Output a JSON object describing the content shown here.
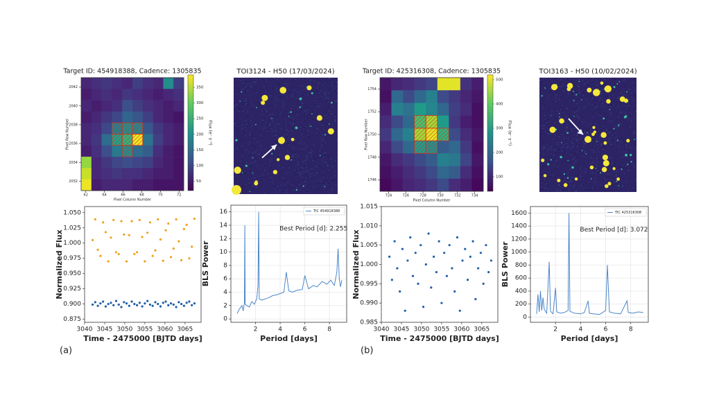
{
  "panel_labels": [
    "(a)",
    "(b)"
  ],
  "chart_data": [
    {
      "type": "heatmap",
      "title": "Target ID: 454918388, Cadence: 1305835",
      "xlabel": "Pixel Column Number",
      "ylabel": "Pixel Row Number",
      "xlim": [
        61.5,
        72.5
      ],
      "xticks": [
        62,
        64,
        66,
        68,
        70,
        72
      ],
      "ylim": [
        2031,
        2043
      ],
      "yticks": [
        2032,
        2034,
        2036,
        2038,
        2040,
        2042
      ],
      "z": [
        [
          60,
          70,
          80,
          70,
          60,
          90,
          70,
          60,
          200,
          90
        ],
        [
          50,
          60,
          70,
          60,
          80,
          70,
          60,
          50,
          60,
          70
        ],
        [
          60,
          50,
          60,
          70,
          110,
          90,
          70,
          60,
          50,
          60
        ],
        [
          50,
          60,
          80,
          100,
          140,
          120,
          90,
          60,
          50,
          40
        ],
        [
          60,
          70,
          100,
          180,
          200,
          190,
          120,
          80,
          60,
          50
        ],
        [
          60,
          80,
          150,
          230,
          260,
          380,
          160,
          90,
          60,
          50
        ],
        [
          50,
          70,
          110,
          170,
          200,
          150,
          130,
          70,
          50,
          40
        ],
        [
          330,
          60,
          80,
          100,
          110,
          100,
          90,
          60,
          50,
          40
        ],
        [
          360,
          60,
          70,
          80,
          70,
          70,
          60,
          50,
          50,
          40
        ],
        [
          380,
          50,
          60,
          60,
          60,
          50,
          50,
          40,
          40,
          40
        ]
      ],
      "zlim": [
        20,
        390
      ],
      "colorbar_label": "Flux (e⁻ s⁻¹)",
      "colorbar_ticks": [
        50,
        100,
        150,
        200,
        250,
        300,
        350
      ]
    },
    {
      "type": "image",
      "title": "TOI3124 - H50 (17/03/2024)"
    },
    {
      "type": "scatter",
      "xlabel": "Time - 2475000 [BJTD days]",
      "ylabel": "Normalized Flux",
      "xlim": [
        3040,
        3069
      ],
      "xticks": [
        3040,
        3045,
        3050,
        3055,
        3060,
        3065
      ],
      "ylim": [
        0.87,
        1.06
      ],
      "yticks": [
        0.875,
        {
          "value": 0.9,
          "label": "0.900"
        },
        0.925,
        {
          "value": 0.95,
          "label": "0.950"
        },
        0.975,
        {
          "value": 1.0,
          "label": "1.000"
        },
        1.025,
        {
          "value": 1.05,
          "label": "1.050"
        }
      ],
      "grid": false,
      "x": [
        3042.0,
        3042.65,
        3043.3,
        3043.95,
        3044.6,
        3045.25,
        3045.9,
        3046.55,
        3047.2,
        3047.85,
        3048.5,
        3049.15,
        3049.8,
        3050.45,
        3051.1,
        3051.75,
        3052.4,
        3053.05,
        3053.7,
        3054.35,
        3055.0,
        3055.65,
        3056.3,
        3056.95,
        3057.6,
        3058.25,
        3058.9,
        3059.55,
        3060.2,
        3060.85,
        3061.5,
        3062.15,
        3062.8,
        3063.45,
        3064.1,
        3064.75,
        3065.4,
        3066.05,
        3066.7,
        3067.35
      ],
      "series": [
        {
          "color": "#f0a020",
          "values": [
            1.005,
            1.039,
            0.989,
            0.979,
            1.034,
            1.018,
            0.97,
            1.009,
            1.038,
            0.985,
            0.982,
            1.036,
            1.014,
            0.97,
            1.013,
            1.036,
            0.982,
            0.985,
            1.038,
            1.01,
            0.97,
            1.017,
            1.034,
            0.979,
            0.988,
            1.039,
            1.006,
            0.971,
            1.021,
            1.032,
            0.977,
            0.991,
            1.039,
            1.003,
            0.972,
            1.023,
            1.03,
            0.975,
            0.994,
            1.04
          ]
        },
        {
          "color": "#1f5fa8",
          "values": [
            0.899,
            0.903,
            0.897,
            0.901,
            0.904,
            0.896,
            0.9,
            0.902,
            0.898,
            0.905,
            0.899,
            0.895,
            0.903,
            0.901,
            0.897,
            0.904,
            0.9,
            0.898,
            0.902,
            0.896,
            0.901,
            0.905,
            0.899,
            0.897,
            0.903,
            0.9,
            0.896,
            0.902,
            0.904,
            0.898,
            0.901,
            0.899,
            0.895,
            0.903,
            0.9,
            0.897,
            0.902,
            0.904,
            0.898,
            0.901
          ]
        }
      ]
    },
    {
      "type": "line",
      "xlabel": "Period [days]",
      "ylabel": "BLS Power",
      "annotation": "Best Period [d]: 2.255",
      "xlim": [
        0,
        9.4
      ],
      "xticks": [
        2,
        4,
        6,
        8
      ],
      "ylim": [
        -0.5,
        17
      ],
      "yticks": [
        0,
        2,
        4,
        6,
        8,
        10,
        12,
        14,
        16
      ],
      "grid": true,
      "legend": "upper right",
      "x": [
        0.5,
        0.7,
        0.9,
        1.0,
        1.1,
        1.13,
        1.16,
        1.3,
        1.5,
        1.7,
        1.9,
        2.1,
        2.2,
        2.255,
        2.3,
        2.5,
        2.8,
        3.1,
        3.4,
        3.7,
        4.0,
        4.3,
        4.5,
        4.7,
        5.0,
        5.4,
        5.8,
        6.0,
        6.3,
        6.7,
        7.0,
        7.4,
        7.8,
        8.1,
        8.4,
        8.6,
        8.7,
        8.8,
        8.9,
        9.0
      ],
      "series": [
        {
          "name": "TIC 454918388",
          "color": "#4a86c8",
          "values": [
            0.8,
            1.5,
            2.0,
            1.2,
            2.5,
            14.0,
            2.2,
            2.0,
            1.8,
            2.6,
            2.2,
            3.0,
            5.0,
            16.0,
            3.0,
            2.8,
            3.0,
            3.2,
            3.5,
            3.6,
            3.8,
            4.0,
            7.0,
            4.2,
            4.0,
            4.3,
            4.4,
            6.5,
            4.5,
            5.0,
            4.8,
            5.6,
            5.2,
            5.8,
            5.0,
            7.0,
            10.5,
            6.0,
            4.8,
            5.8
          ]
        }
      ]
    },
    {
      "type": "heatmap",
      "title": "Target ID: 425316308, Cadence: 1305835",
      "xlabel": "Pixel Column Number",
      "ylabel": "Pixel Row Number",
      "xlim": [
        723,
        735
      ],
      "xticks": [
        724,
        726,
        728,
        730,
        732,
        734
      ],
      "ylim": [
        1745,
        1755
      ],
      "yticks": [
        1746,
        1748,
        1750,
        1752,
        1754
      ],
      "z": [
        [
          70,
          90,
          100,
          120,
          140,
          500,
          500,
          110,
          80
        ],
        [
          60,
          200,
          150,
          200,
          250,
          150,
          120,
          90,
          70
        ],
        [
          80,
          250,
          220,
          300,
          260,
          200,
          130,
          100,
          60
        ],
        [
          100,
          150,
          200,
          380,
          450,
          300,
          120,
          80,
          60
        ],
        [
          120,
          200,
          250,
          450,
          500,
          350,
          150,
          100,
          70
        ],
        [
          90,
          150,
          200,
          300,
          280,
          180,
          200,
          120,
          60
        ],
        [
          70,
          100,
          120,
          150,
          180,
          250,
          230,
          140,
          70
        ],
        [
          60,
          80,
          100,
          120,
          150,
          200,
          180,
          100,
          60
        ],
        [
          50,
          70,
          90,
          100,
          120,
          150,
          100,
          80,
          50
        ]
      ],
      "zlim": [
        40,
        520
      ],
      "colorbar_label": "Flux (e⁻ s⁻¹)",
      "colorbar_ticks": [
        100,
        200,
        300,
        400,
        500
      ]
    },
    {
      "type": "image",
      "title": "TOI3163 - H50 (10/02/2024)"
    },
    {
      "type": "scatter",
      "xlabel": "Time - 2475000 [BJTD days]",
      "ylabel": "Normalized Flux",
      "xlim": [
        3040,
        3069
      ],
      "xticks": [
        3040,
        3045,
        3050,
        3055,
        3060,
        3065
      ],
      "ylim": [
        0.985,
        1.015
      ],
      "yticks": [
        0.985,
        {
          "value": 0.99,
          "label": "0.990"
        },
        0.995,
        {
          "value": 1.0,
          "label": "1.000"
        },
        1.005,
        {
          "value": 1.01,
          "label": "1.010"
        },
        1.015
      ],
      "grid": false,
      "x": [
        3042.0,
        3042.65,
        3043.3,
        3043.95,
        3044.6,
        3045.25,
        3045.9,
        3046.55,
        3047.2,
        3047.85,
        3048.5,
        3049.15,
        3049.8,
        3050.45,
        3051.1,
        3051.75,
        3052.4,
        3053.05,
        3053.7,
        3054.35,
        3055.0,
        3055.65,
        3056.3,
        3056.95,
        3057.6,
        3058.25,
        3058.9,
        3059.55,
        3060.2,
        3060.85,
        3061.5,
        3062.15,
        3062.8,
        3063.45,
        3064.1,
        3064.75,
        3065.4,
        3066.05,
        3066.7,
        3067.35
      ],
      "series": [
        {
          "color": "#1f5fa8",
          "values": [
            1.002,
            0.996,
            1.006,
            0.999,
            0.993,
            1.004,
            0.988,
            1.001,
            1.007,
            0.997,
            1.003,
            0.995,
            1.005,
            0.989,
            1.0,
            1.008,
            0.994,
            1.002,
            0.998,
            1.006,
            0.99,
            1.003,
            0.997,
            1.005,
            0.999,
            0.993,
            1.007,
            0.988,
            1.001,
            1.004,
            0.996,
            1.002,
            1.006,
            0.991,
            0.999,
            1.003,
            0.995,
            1.005,
            0.998,
            1.001
          ]
        }
      ]
    },
    {
      "type": "line",
      "xlabel": "Period [days]",
      "ylabel": "BLS Power",
      "annotation": "Best Period [d]: 3.072",
      "xlim": [
        0,
        9.4
      ],
      "xticks": [
        2,
        4,
        6,
        8
      ],
      "ylim": [
        -80,
        1700
      ],
      "yticks": [
        0,
        200,
        400,
        600,
        800,
        1000,
        1200,
        1400,
        1600
      ],
      "grid": true,
      "legend": "upper right",
      "x": [
        0.5,
        0.6,
        0.7,
        0.8,
        0.9,
        1.0,
        1.1,
        1.3,
        1.5,
        1.6,
        1.8,
        2.0,
        2.1,
        2.4,
        2.7,
        3.0,
        3.072,
        3.15,
        3.5,
        4.0,
        4.3,
        4.6,
        4.7,
        5.0,
        5.5,
        6.0,
        6.14,
        6.3,
        6.7,
        7.2,
        7.7,
        7.8,
        8.2,
        8.6,
        9.0
      ],
      "series": [
        {
          "name": "TIC 425316308",
          "color": "#4a86c8",
          "values": [
            50,
            350,
            80,
            400,
            100,
            300,
            120,
            60,
            850,
            90,
            50,
            450,
            80,
            60,
            70,
            100,
            1600,
            90,
            60,
            50,
            70,
            250,
            60,
            50,
            40,
            100,
            800,
            80,
            60,
            50,
            250,
            70,
            60,
            80,
            70
          ]
        }
      ]
    }
  ]
}
